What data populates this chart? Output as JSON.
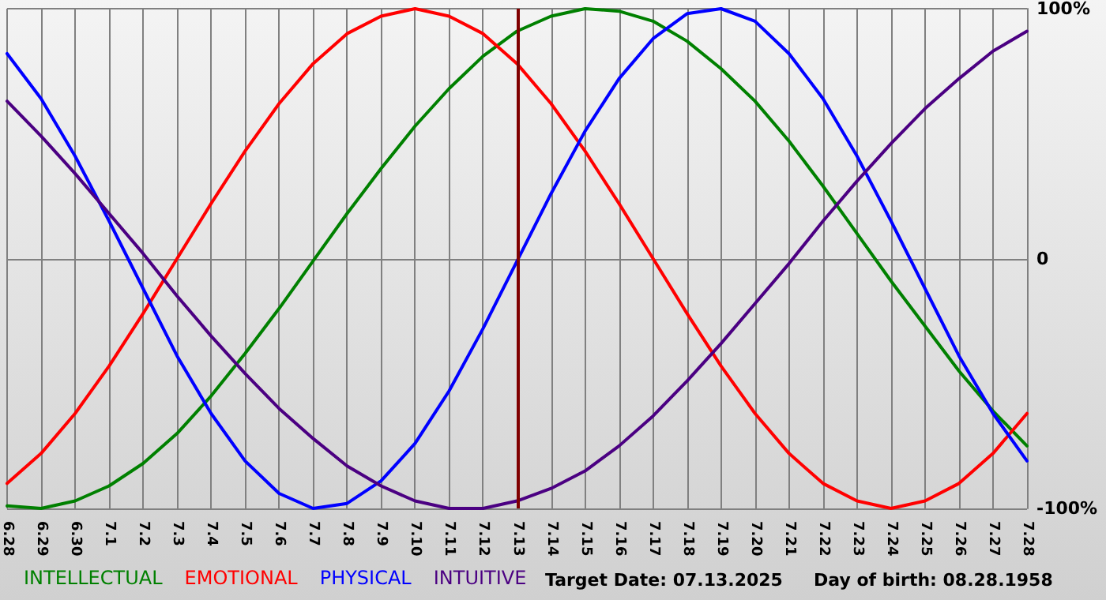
{
  "chart_data": {
    "type": "line",
    "categories": [
      "6.28",
      "6.29",
      "6.30",
      "7.1",
      "7.2",
      "7.3",
      "7.4",
      "7.5",
      "7.6",
      "7.7",
      "7.8",
      "7.9",
      "7.10",
      "7.11",
      "7.12",
      "7.13",
      "7.14",
      "7.15",
      "7.16",
      "7.17",
      "7.18",
      "7.19",
      "7.20",
      "7.21",
      "7.22",
      "7.23",
      "7.24",
      "7.25",
      "7.26",
      "7.27",
      "7.28"
    ],
    "series": [
      {
        "name": "INTELLECTUAL",
        "color": "#008000",
        "values": [
          -99,
          -100,
          -97,
          -91,
          -82,
          -70,
          -55,
          -38,
          -20,
          -1,
          18,
          36,
          53,
          68,
          81,
          91,
          97,
          100,
          99,
          95,
          87,
          76,
          63,
          47,
          29,
          10,
          -9,
          -27,
          -45,
          -61,
          -75
        ]
      },
      {
        "name": "EMOTIONAL",
        "color": "#ff0000",
        "values": [
          -90,
          -78,
          -62,
          -43,
          -22,
          0,
          22,
          43,
          62,
          78,
          90,
          97,
          100,
          97,
          90,
          78,
          62,
          43,
          22,
          0,
          -22,
          -43,
          -62,
          -78,
          -90,
          -97,
          -100,
          -97,
          -90,
          -78,
          -62
        ]
      },
      {
        "name": "PHYSICAL",
        "color": "#0000ff",
        "values": [
          82,
          64,
          41,
          15,
          -12,
          -39,
          -62,
          -81,
          -94,
          -100,
          -98,
          -89,
          -74,
          -53,
          -28,
          -1,
          26,
          51,
          72,
          88,
          98,
          100,
          95,
          82,
          64,
          41,
          15,
          -12,
          -39,
          -62,
          -81
        ]
      },
      {
        "name": "INTUITIVE",
        "color": "#4b0082",
        "values": [
          63,
          49,
          34,
          18,
          2,
          -15,
          -31,
          -46,
          -60,
          -72,
          -83,
          -91,
          -97,
          -100,
          -100,
          -97,
          -92,
          -85,
          -75,
          -63,
          -49,
          -34,
          -18,
          -2,
          15,
          31,
          46,
          60,
          72,
          83,
          91
        ]
      }
    ],
    "ylim": [
      -100,
      100
    ],
    "yticks": [
      {
        "value": -100,
        "label": "-100%"
      },
      0,
      {
        "value": 100,
        "label": "100%"
      }
    ],
    "grid": true,
    "legend": "bottom left",
    "marker": "none",
    "line_style": "solid",
    "ref_lines": [
      {
        "axis": "x",
        "value": "7.13",
        "color": "#800000"
      }
    ],
    "annotations": [
      "Target Date: 07.13.2025",
      "Day of birth: 08.28.1958"
    ]
  }
}
